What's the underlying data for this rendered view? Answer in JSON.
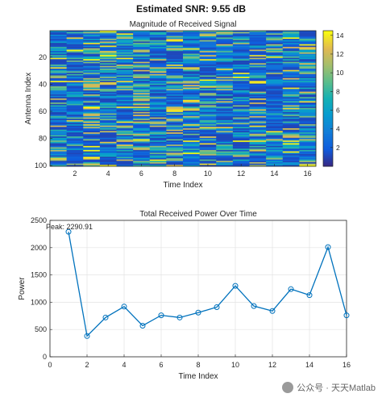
{
  "suptitle": "Estimated SNR: 9.55 dB",
  "watermark_text": "公众号 · 天天Matlab",
  "chart_data": [
    {
      "type": "heatmap",
      "title": "Magnitude of Received Signal",
      "xlabel": "Time Index",
      "ylabel": "Antenna Index",
      "x_range": [
        1,
        16
      ],
      "y_range": [
        1,
        100
      ],
      "xticks": [
        2,
        4,
        6,
        8,
        10,
        12,
        14,
        16
      ],
      "yticks": [
        20,
        40,
        60,
        80,
        100
      ],
      "colorbar": {
        "min": 0,
        "max": 14.5,
        "ticks": [
          2,
          4,
          6,
          8,
          10,
          12,
          14
        ],
        "colormap": "parula"
      },
      "y_reversed": true,
      "grid": false
    },
    {
      "type": "line",
      "title": "Total Received Power Over Time",
      "xlabel": "Time Index",
      "ylabel": "Power",
      "x": [
        1,
        2,
        3,
        4,
        5,
        6,
        7,
        8,
        9,
        10,
        11,
        12,
        13,
        14,
        15,
        16
      ],
      "values": [
        2290.91,
        380,
        720,
        920,
        570,
        760,
        720,
        810,
        910,
        1300,
        930,
        840,
        1240,
        1130,
        2010,
        760
      ],
      "xlim": [
        0,
        16
      ],
      "ylim": [
        0,
        2500
      ],
      "xticks": [
        0,
        2,
        4,
        6,
        8,
        10,
        12,
        14,
        16
      ],
      "yticks": [
        0,
        500,
        1000,
        1500,
        2000,
        2500
      ],
      "annotation": "Peak: 2290.91",
      "line_color": "#0072BD",
      "grid": true
    }
  ]
}
